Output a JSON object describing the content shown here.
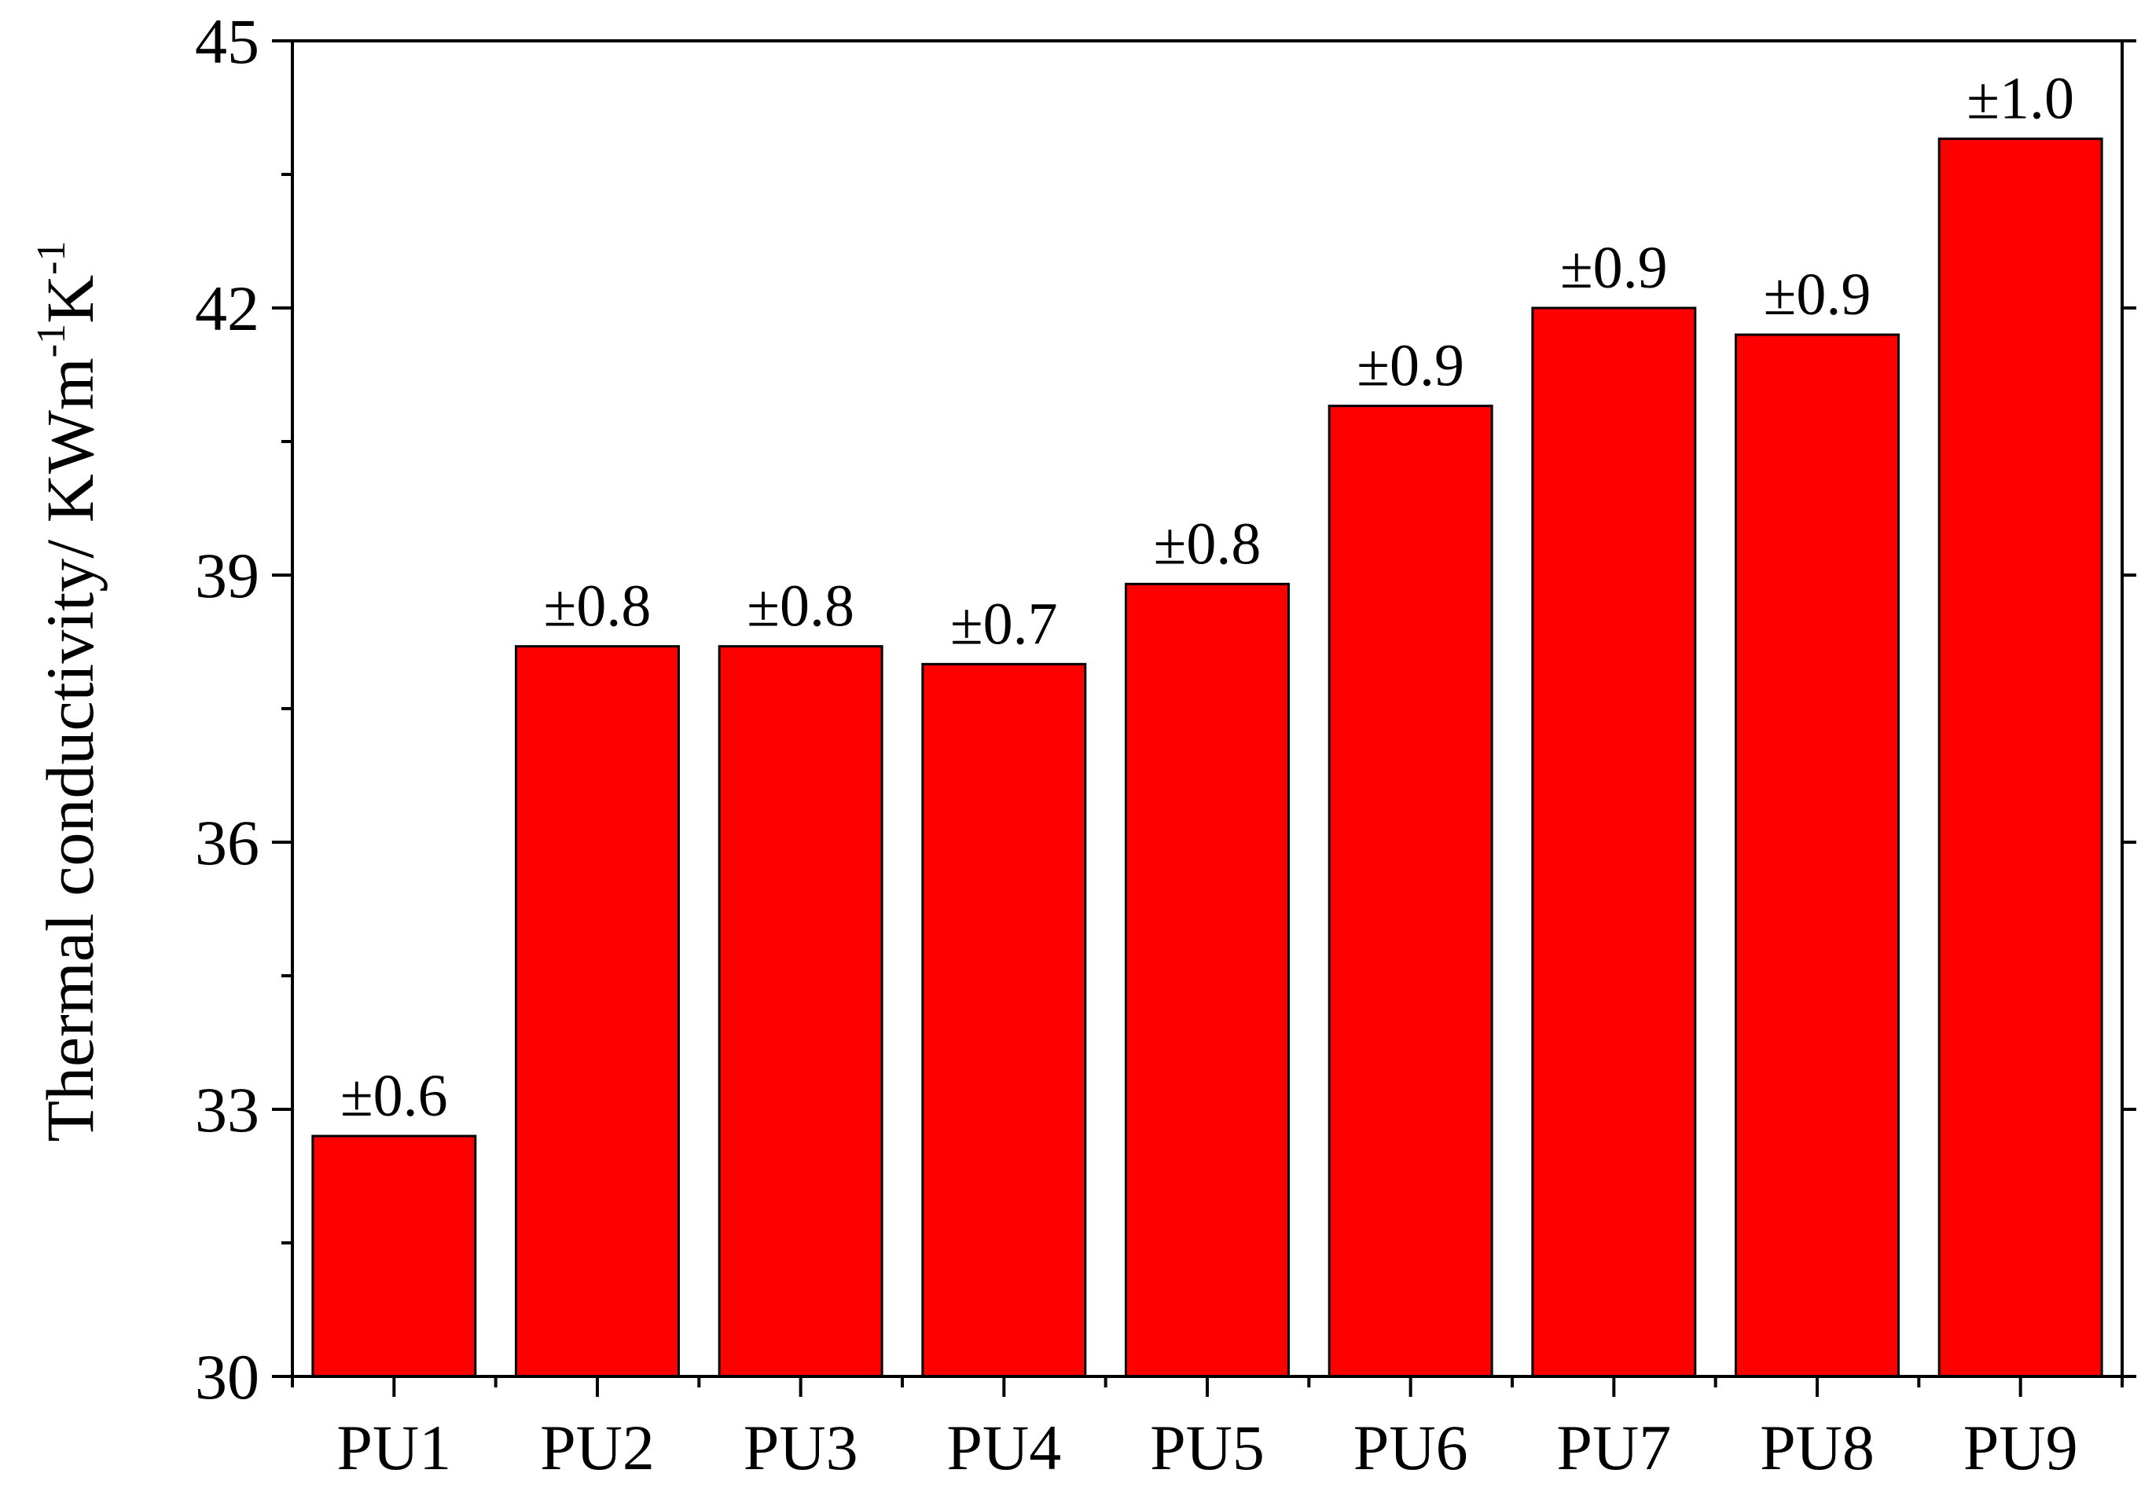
{
  "chart_data": {
    "type": "bar",
    "categories": [
      "PU1",
      "PU2",
      "PU3",
      "PU4",
      "PU5",
      "PU6",
      "PU7",
      "PU8",
      "PU9"
    ],
    "values": [
      32.7,
      38.2,
      38.2,
      38.0,
      38.9,
      40.9,
      42.0,
      41.7,
      43.9
    ],
    "data_labels": [
      "±0.6",
      "±0.8",
      "±0.8",
      "±0.7",
      "±0.8",
      "±0.9",
      "±0.9",
      "±0.9",
      "±1.0"
    ],
    "ylabel": {
      "text": "Thermal conductivity/ KWm",
      "sup1": "-1",
      "mid": "K",
      "sup2": "-1"
    },
    "ylim": [
      30,
      45
    ],
    "yticks": [
      30,
      33,
      36,
      39,
      42,
      45
    ],
    "yticks_display": [
      "30",
      "33",
      "36",
      "39",
      "42",
      "45"
    ],
    "grid": false,
    "legend": "none",
    "colors": {
      "bar": "#ff0000",
      "axis": "#000000"
    }
  }
}
